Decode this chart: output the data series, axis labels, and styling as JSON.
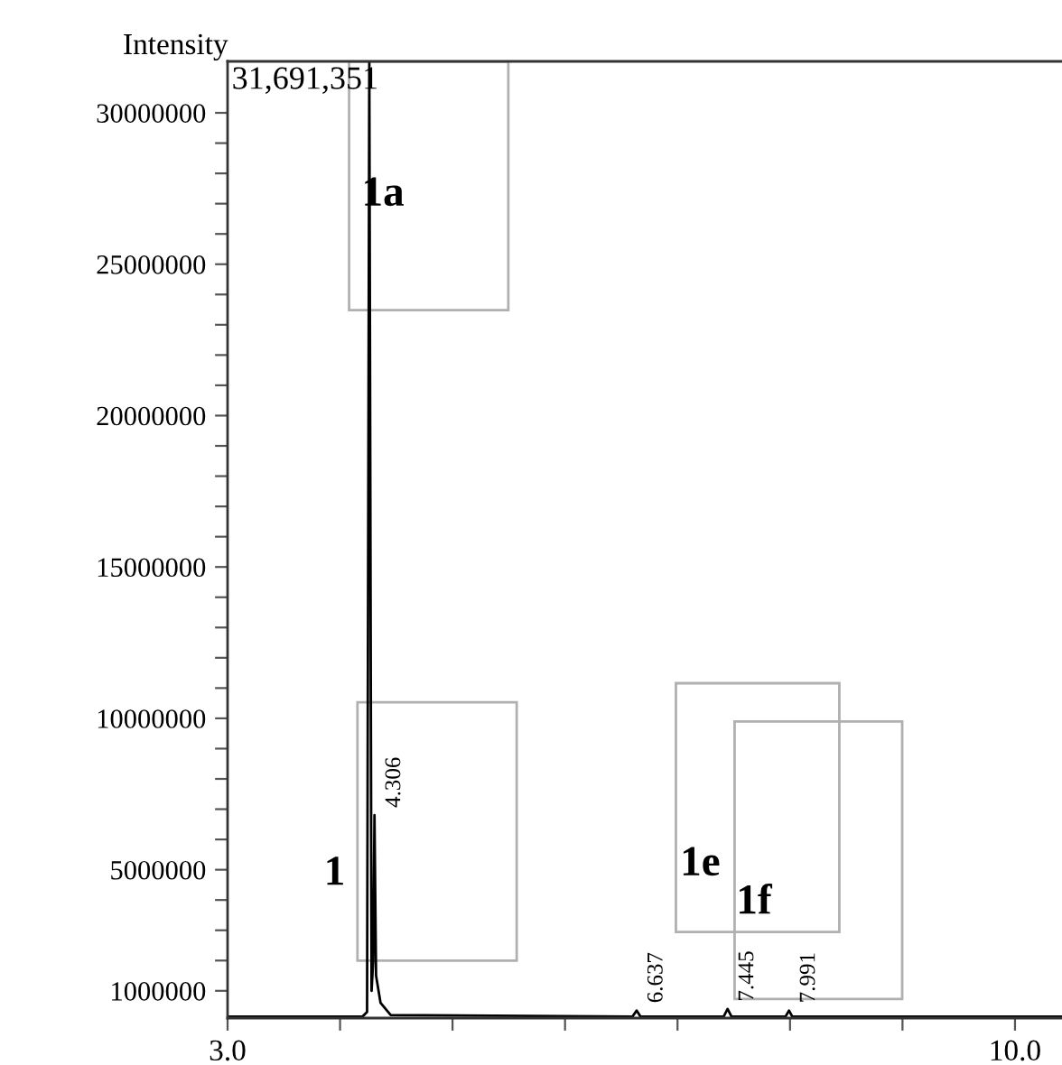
{
  "chart_data": {
    "type": "line",
    "ylabel": "Intensity",
    "series": [
      {
        "color": "#000000",
        "x": [
          3.0,
          4.2,
          4.24,
          4.26,
          4.28,
          4.295,
          4.306,
          4.32,
          4.36,
          4.45,
          6.6,
          6.637,
          6.67,
          7.41,
          7.445,
          7.48,
          7.96,
          7.991,
          8.02,
          10.45
        ],
        "values": [
          150000,
          150000,
          300000,
          31700000,
          1000000,
          2000000,
          6800000,
          1500000,
          600000,
          200000,
          150000,
          350000,
          150000,
          150000,
          400000,
          150000,
          150000,
          350000,
          150000,
          150000
        ]
      }
    ],
    "xlim": [
      3.0,
      10.45
    ],
    "xticks": [
      {
        "value": 3,
        "label": "3.0"
      },
      {
        "value": 4,
        "label": null
      },
      {
        "value": 5,
        "label": null
      },
      {
        "value": 6,
        "label": null
      },
      {
        "value": 7,
        "label": null
      },
      {
        "value": 8,
        "label": null
      },
      {
        "value": 9,
        "label": null
      },
      {
        "value": 10,
        "label": "10.0"
      }
    ],
    "ylim": [
      100000,
      31700000
    ],
    "yticks": [
      {
        "value": 1000000,
        "label": "1000000"
      },
      {
        "value": 2000000,
        "label": null
      },
      {
        "value": 3000000,
        "label": null
      },
      {
        "value": 4000000,
        "label": null
      },
      {
        "value": 5000000,
        "label": "5000000"
      },
      {
        "value": 6000000,
        "label": null
      },
      {
        "value": 7000000,
        "label": null
      },
      {
        "value": 8000000,
        "label": null
      },
      {
        "value": 9000000,
        "label": null
      },
      {
        "value": 10000000,
        "label": "10000000"
      },
      {
        "value": 11000000,
        "label": null
      },
      {
        "value": 12000000,
        "label": null
      },
      {
        "value": 13000000,
        "label": null
      },
      {
        "value": 14000000,
        "label": null
      },
      {
        "value": 15000000,
        "label": "15000000"
      },
      {
        "value": 16000000,
        "label": null
      },
      {
        "value": 17000000,
        "label": null
      },
      {
        "value": 18000000,
        "label": null
      },
      {
        "value": 19000000,
        "label": null
      },
      {
        "value": 20000000,
        "label": "20000000"
      },
      {
        "value": 21000000,
        "label": null
      },
      {
        "value": 22000000,
        "label": null
      },
      {
        "value": 23000000,
        "label": null
      },
      {
        "value": 24000000,
        "label": null
      },
      {
        "value": 25000000,
        "label": "25000000"
      },
      {
        "value": 26000000,
        "label": null
      },
      {
        "value": 27000000,
        "label": null
      },
      {
        "value": 28000000,
        "label": null
      },
      {
        "value": 29000000,
        "label": null
      },
      {
        "value": 30000000,
        "label": "30000000"
      }
    ],
    "grid": false,
    "marker": "none",
    "line_style": "solid",
    "annotations": [
      "31,691,351",
      {
        "text": "4.306",
        "x": 4.306,
        "y": 6800000
      },
      {
        "text": "6.637",
        "x": 6.637,
        "y": 350000
      },
      {
        "text": "7.445",
        "x": 7.445,
        "y": 400000
      },
      {
        "text": "7.991",
        "x": 7.991,
        "y": 350000
      },
      "1a",
      "1",
      "1e",
      "1f"
    ]
  }
}
